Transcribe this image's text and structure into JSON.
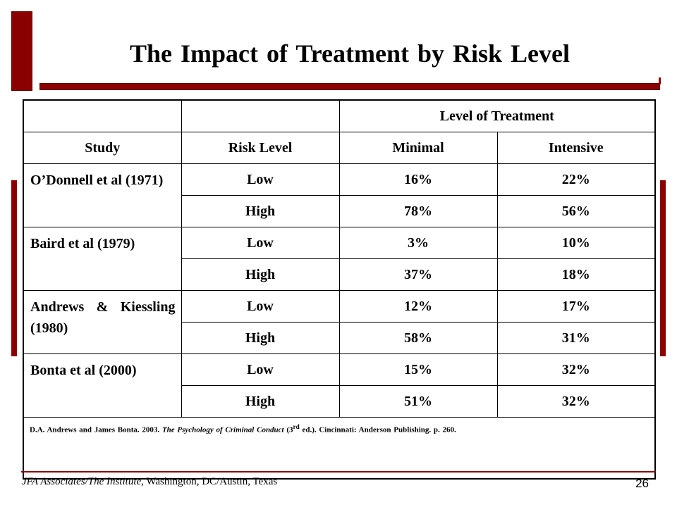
{
  "slide": {
    "title": "The Impact of Treatment by Risk Level",
    "accent_color": "#8b0000"
  },
  "table": {
    "group_header": "Level of Treatment",
    "columns": [
      "Study",
      "Risk Level",
      "Minimal",
      "Intensive"
    ],
    "studies": [
      {
        "study": "O’Donnell et al (1971)",
        "rows": [
          {
            "risk": "Low",
            "minimal": "16%",
            "intensive": "22%"
          },
          {
            "risk": "High",
            "minimal": "78%",
            "intensive": "56%"
          }
        ]
      },
      {
        "study": "Baird et al (1979)",
        "rows": [
          {
            "risk": "Low",
            "minimal": "3%",
            "intensive": "10%"
          },
          {
            "risk": "High",
            "minimal": "37%",
            "intensive": "18%"
          }
        ]
      },
      {
        "study": "Andrews & Kiessling (1980)",
        "rows": [
          {
            "risk": "Low",
            "minimal": "12%",
            "intensive": "17%"
          },
          {
            "risk": "High",
            "minimal": "58%",
            "intensive": "31%"
          }
        ]
      },
      {
        "study": "Bonta et al (2000)",
        "rows": [
          {
            "risk": "Low",
            "minimal": "15%",
            "intensive": "32%"
          },
          {
            "risk": "High",
            "minimal": "51%",
            "intensive": "32%"
          }
        ]
      }
    ],
    "citation": {
      "before": "D.A. Andrews and James Bonta. 2003.",
      "book_title": "The Psychology of Criminal Conduct",
      "edition_open": "(3",
      "edition_sup": "rd",
      "after": "ed.). Cincinnati: Anderson Publishing. p. 260."
    }
  },
  "footer": {
    "org": "JFA Associates/The Institute,",
    "location": "Washington, DC/Austin, Texas",
    "page_number": "26"
  }
}
